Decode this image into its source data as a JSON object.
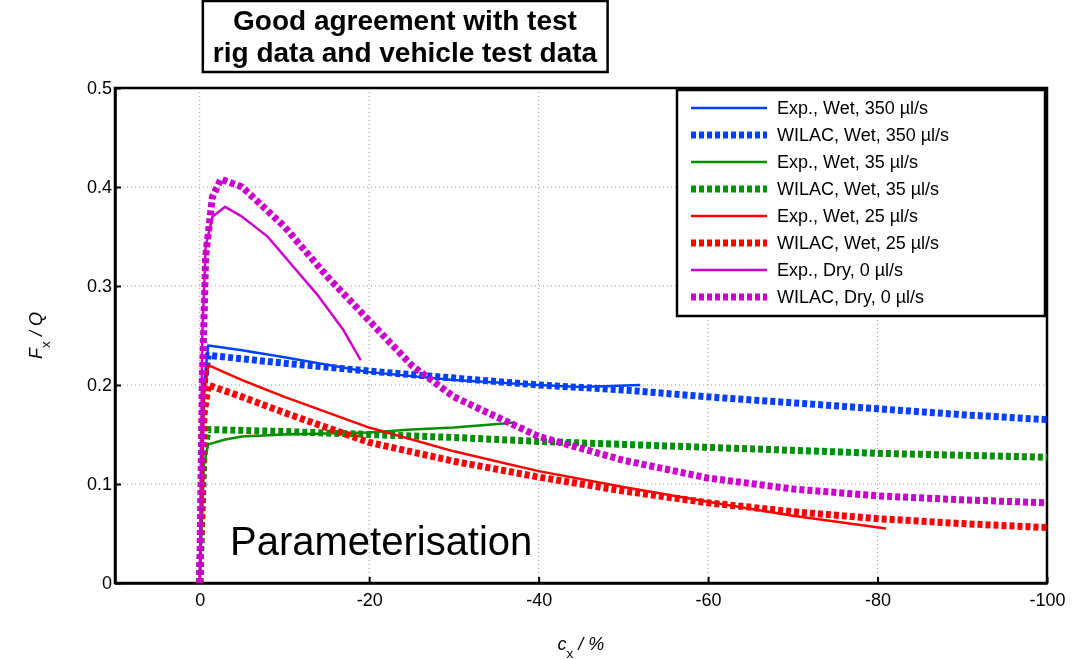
{
  "chart_data": {
    "type": "line",
    "annotations": [
      "Good agreement with test\nrig data and vehicle test data",
      "Parameterisation"
    ],
    "xlabel": "c$_{x}$ / %",
    "ylabel": "F$_{x}$ / Q",
    "xlim": [
      10,
      -100
    ],
    "xticks": [
      0,
      -20,
      -40,
      -60,
      -80,
      -100
    ],
    "ylim": [
      0,
      0.5
    ],
    "yticks": [
      0,
      0.1,
      0.2,
      0.3,
      0.4,
      0.5
    ],
    "grid": true,
    "legend": "top right",
    "series": [
      {
        "name": "Exp., Wet, 350 µl/s",
        "color": "#0040ff",
        "line_style": "solid",
        "x": [
          0,
          -0.5,
          -1,
          -5,
          -10,
          -20,
          -30,
          -40,
          -45,
          -52
        ],
        "values": [
          0,
          0.2,
          0.24,
          0.235,
          0.228,
          0.213,
          0.205,
          0.2,
          0.198,
          0.2
        ]
      },
      {
        "name": "WILAC, Wet, 350 µl/s",
        "color": "#0040ff",
        "line_style": "dotted",
        "x": [
          0,
          -0.5,
          -1,
          -10,
          -20,
          -30,
          -40,
          -50,
          -60,
          -70,
          -80,
          -90,
          -100
        ],
        "values": [
          0,
          0.2,
          0.23,
          0.222,
          0.214,
          0.207,
          0.2,
          0.195,
          0.188,
          0.182,
          0.176,
          0.17,
          0.165
        ]
      },
      {
        "name": "Exp., Wet, 35 µl/s",
        "color": "#009000",
        "line_style": "solid",
        "x": [
          0,
          -0.5,
          -1,
          -3,
          -5,
          -10,
          -20,
          -25,
          -30,
          -37
        ],
        "values": [
          0,
          0.12,
          0.14,
          0.145,
          0.148,
          0.15,
          0.152,
          0.155,
          0.157,
          0.162
        ]
      },
      {
        "name": "WILAC, Wet, 35 µl/s",
        "color": "#009000",
        "line_style": "dotted",
        "x": [
          0,
          -0.5,
          -1,
          -10,
          -20,
          -30,
          -40,
          -50,
          -60,
          -70,
          -80,
          -90,
          -100
        ],
        "values": [
          0,
          0.13,
          0.155,
          0.153,
          0.15,
          0.147,
          0.143,
          0.14,
          0.137,
          0.134,
          0.131,
          0.129,
          0.127
        ]
      },
      {
        "name": "Exp., Wet, 25 µl/s",
        "color": "#ff0000",
        "line_style": "solid",
        "x": [
          0,
          -0.5,
          -1,
          -5,
          -10,
          -20,
          -30,
          -40,
          -50,
          -60,
          -70,
          -81
        ],
        "values": [
          0,
          0.19,
          0.22,
          0.205,
          0.188,
          0.157,
          0.133,
          0.113,
          0.097,
          0.082,
          0.068,
          0.055
        ]
      },
      {
        "name": "WILAC, Wet, 25 µl/s",
        "color": "#ff0000",
        "line_style": "dotted",
        "x": [
          0,
          -0.5,
          -1,
          -5,
          -10,
          -20,
          -30,
          -40,
          -50,
          -60,
          -70,
          -80,
          -90,
          -100
        ],
        "values": [
          0,
          0.17,
          0.2,
          0.188,
          0.172,
          0.142,
          0.123,
          0.107,
          0.093,
          0.081,
          0.072,
          0.065,
          0.06,
          0.056
        ]
      },
      {
        "name": "Exp., Dry, 0 µl/s",
        "color": "#cc00cc",
        "line_style": "solid",
        "x": [
          0,
          -0.3,
          -0.7,
          -1.5,
          -3,
          -5,
          -8,
          -11,
          -14,
          -17,
          -19
        ],
        "values": [
          0,
          0.25,
          0.34,
          0.37,
          0.38,
          0.37,
          0.35,
          0.32,
          0.29,
          0.255,
          0.225
        ]
      },
      {
        "name": "WILAC, Dry, 0 µl/s",
        "color": "#cc00cc",
        "line_style": "dotted",
        "x": [
          0,
          -0.3,
          -0.7,
          -1.5,
          -2.5,
          -5,
          -10,
          -15,
          -20,
          -25,
          -30,
          -40,
          -50,
          -60,
          -70,
          -80,
          -90,
          -100
        ],
        "values": [
          0,
          0.2,
          0.33,
          0.39,
          0.408,
          0.4,
          0.36,
          0.31,
          0.265,
          0.22,
          0.188,
          0.148,
          0.124,
          0.106,
          0.095,
          0.088,
          0.084,
          0.081
        ]
      }
    ]
  }
}
